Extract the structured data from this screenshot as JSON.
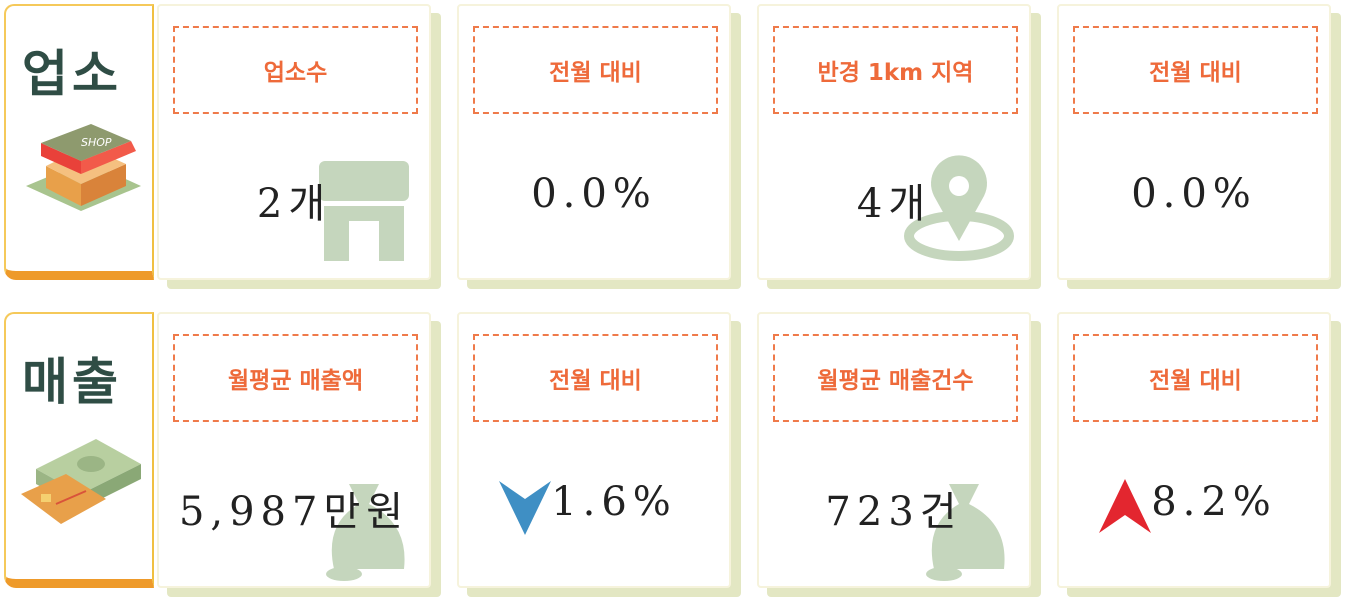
{
  "rows": [
    {
      "label": "업소",
      "cards": [
        {
          "title": "업소수",
          "value": "2개"
        },
        {
          "title": "전월 대비",
          "value": "0.0%"
        },
        {
          "title": "반경 1km 지역",
          "value": "4개"
        },
        {
          "title": "전월 대비",
          "value": "0.0%"
        }
      ]
    },
    {
      "label": "매출",
      "cards": [
        {
          "title": "월평균 매출액",
          "value": "5,987만원"
        },
        {
          "title": "전월 대비",
          "value": "1.6%"
        },
        {
          "title": "월평균 매출건수",
          "value": "723건"
        },
        {
          "title": "전월 대비",
          "value": "8.2%"
        }
      ]
    }
  ]
}
